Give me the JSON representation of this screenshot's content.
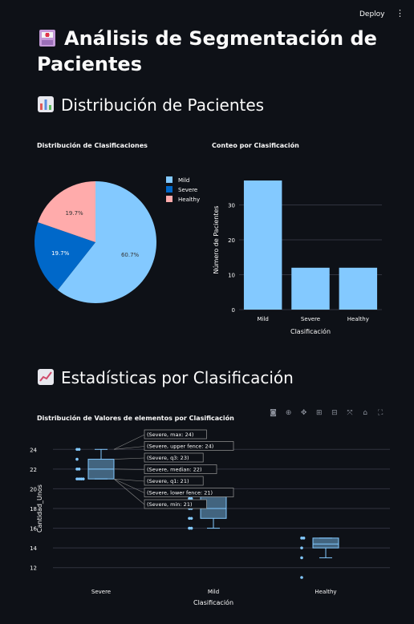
{
  "header": {
    "deploy_label": "Deploy",
    "menu_icon": "kebab-menu-icon"
  },
  "page": {
    "title": "Análisis de Segmentación de Pacientes",
    "title_icon": "hospital-icon",
    "section1": {
      "title": "Distribución de Pacientes",
      "icon": "bar-chart-icon"
    },
    "section2": {
      "title": "Estadísticas por Clasificación",
      "icon": "trend-chart-icon"
    }
  },
  "colors": {
    "mild": "#83c9ff",
    "severe": "#0068c9",
    "healthy": "#ffabab",
    "background": "#0e1117"
  },
  "chart_data": [
    {
      "type": "pie",
      "title": "Distribución de Clasificaciones",
      "labels": [
        "Mild",
        "Severe",
        "Healthy"
      ],
      "values": [
        60.7,
        19.7,
        19.7
      ],
      "value_labels": [
        "60.7%",
        "19.7%",
        "19.7%"
      ],
      "legend": [
        "Mild",
        "Severe",
        "Healthy"
      ],
      "legend_position": "right"
    },
    {
      "type": "bar",
      "title": "Conteo por Clasificación",
      "categories": [
        "Mild",
        "Severe",
        "Healthy"
      ],
      "values": [
        37,
        12,
        12
      ],
      "xlabel": "Clasificación",
      "ylabel": "Número de Pacientes",
      "ylim": [
        0,
        40
      ],
      "yticks": [
        "0",
        "10",
        "20",
        "30"
      ]
    },
    {
      "type": "box",
      "title": "Distribución de Valores de elementos por Clasificación",
      "xlabel": "Clasificación",
      "ylabel": "Cantidad_Unos",
      "categories": [
        "Severe",
        "Mild",
        "Healthy"
      ],
      "ylim": [
        11,
        25
      ],
      "yticks": [
        "12",
        "14",
        "16",
        "18",
        "20",
        "22",
        "24"
      ],
      "boxes": [
        {
          "name": "Severe",
          "min": 21,
          "q1": 21,
          "median": 22,
          "q3": 23,
          "max": 24,
          "lower_fence": 21,
          "upper_fence": 24,
          "points": [
            24,
            24,
            23,
            22,
            22,
            21,
            21,
            21,
            21
          ]
        },
        {
          "name": "Mild",
          "min": 16,
          "q1": 17,
          "median": 18,
          "q3": 19.2,
          "max": 20,
          "lower_fence": 16,
          "upper_fence": 20,
          "points": [
            19,
            19,
            18,
            18,
            17,
            17,
            16,
            16
          ]
        },
        {
          "name": "Healthy",
          "min": 13,
          "q1": 14,
          "median": 14.4,
          "q3": 15,
          "max": 15,
          "lower_fence": 13,
          "upper_fence": 15,
          "points": [
            15,
            15,
            14,
            13,
            11
          ]
        }
      ],
      "hover_labels": [
        "(Severe, max: 24)",
        "(Severe, upper fence: 24)",
        "(Severe, q3: 23)",
        "(Severe, median: 22)",
        "(Severe, q1: 21)",
        "(Severe, lower fence: 21)",
        "(Severe, min: 21)"
      ],
      "hover_values": [
        24,
        24,
        23,
        22,
        21,
        21,
        21
      ]
    }
  ]
}
